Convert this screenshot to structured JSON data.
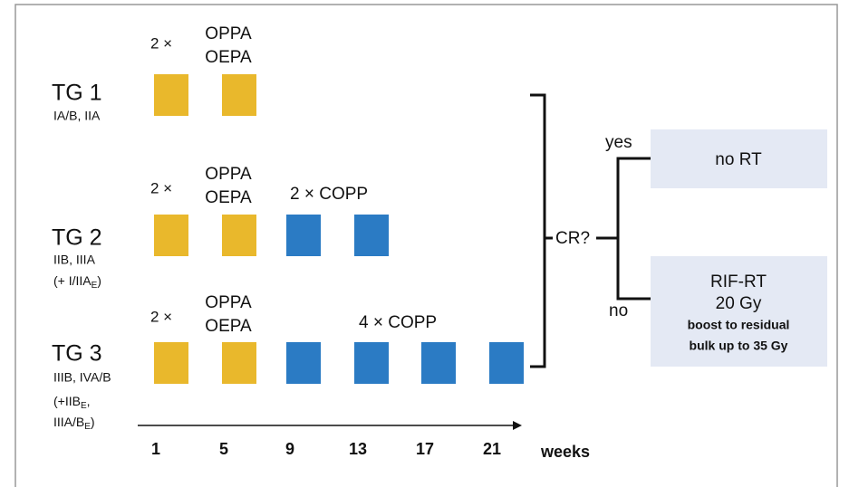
{
  "groups": [
    {
      "label": "TG 1",
      "stages": [
        {
          "text": "IA/B, IIA"
        }
      ],
      "regimens": [
        {
          "count": "2 ×",
          "names": [
            "OPPA",
            "OEPA"
          ]
        }
      ]
    },
    {
      "label": "TG 2",
      "stages": [
        {
          "text": "IIB, IIIA"
        },
        {
          "text": "(+ I/IIA",
          "sub": "E",
          "close": ")"
        }
      ],
      "regimens": [
        {
          "count": "2 ×",
          "names": [
            "OPPA",
            "OEPA"
          ]
        },
        {
          "count": "2 ×",
          "names": [
            "COPP"
          ]
        }
      ]
    },
    {
      "label": "TG 3",
      "stages": [
        {
          "text": "IIIB, IVA/B"
        },
        {
          "text": "(+IIB",
          "sub": "E",
          "close": ","
        },
        {
          "text": "IIIA/B",
          "sub": "E",
          "close": ")"
        }
      ],
      "regimens": [
        {
          "count": "2 ×",
          "names": [
            "OPPA",
            "OEPA"
          ]
        },
        {
          "count": "4 ×",
          "names": [
            "COPP"
          ]
        }
      ]
    }
  ],
  "response": {
    "question": "CR?",
    "yes": "yes",
    "no": "no"
  },
  "outcomes": [
    {
      "lines": [
        "no RT"
      ]
    },
    {
      "lines": [
        "RIF-RT",
        "20 Gy",
        "boost to residual",
        "bulk up to 35 Gy"
      ]
    }
  ],
  "axis": {
    "ticks": [
      "1",
      "5",
      "9",
      "13",
      "17",
      "21"
    ],
    "unit": "weeks"
  }
}
